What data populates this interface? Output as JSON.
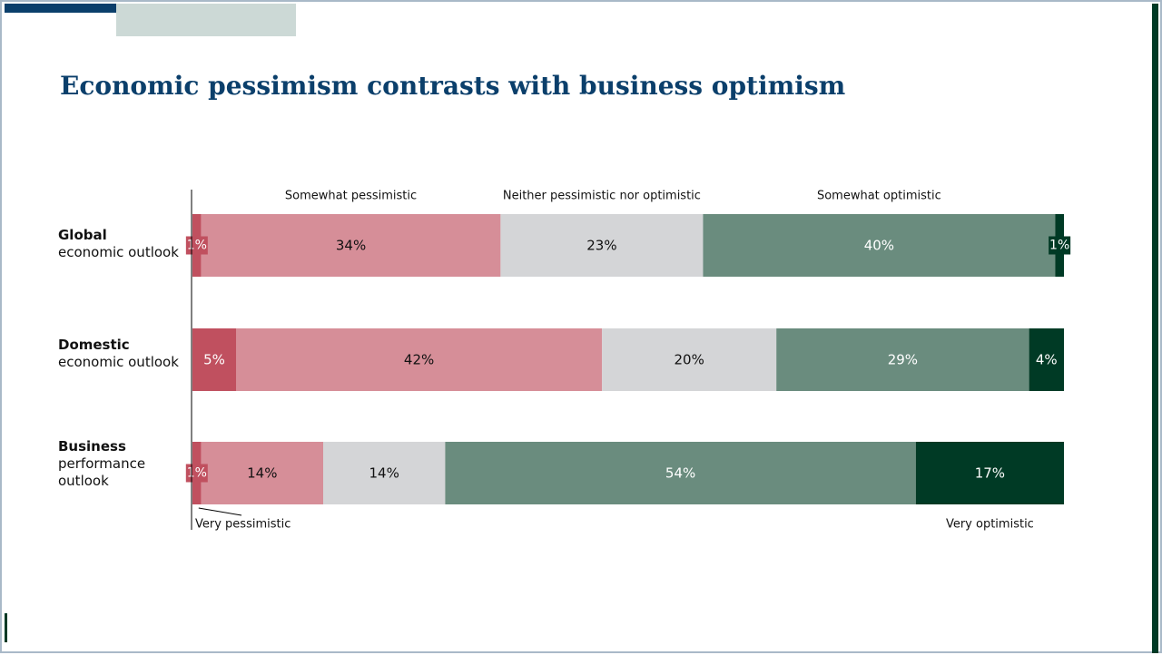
{
  "slide": {
    "title": "Economic pessimism contrasts with business optimism"
  },
  "chart_data": {
    "type": "bar",
    "orientation": "horizontal",
    "stacked": true,
    "unit": "%",
    "categories": [
      {
        "bold": "Global",
        "rest": [
          "economic outlook"
        ]
      },
      {
        "bold": "Domestic",
        "rest": [
          "economic outlook"
        ]
      },
      {
        "bold": "Business",
        "rest": [
          "performance",
          "outlook"
        ]
      }
    ],
    "series": [
      {
        "name": "Very pessimistic",
        "color": "#c0505f",
        "text_color": "#ffffff",
        "values": [
          1,
          5,
          1
        ]
      },
      {
        "name": "Somewhat pessimistic",
        "color": "#d68e98",
        "text_color": "#111111",
        "values": [
          34,
          42,
          14
        ]
      },
      {
        "name": "Neither pessimistic nor optimistic",
        "color": "#d4d5d7",
        "text_color": "#111111",
        "values": [
          23,
          20,
          14
        ]
      },
      {
        "name": "Somewhat optimistic",
        "color": "#6a8c7e",
        "text_color": "#ffffff",
        "values": [
          40,
          29,
          54
        ]
      },
      {
        "name": "Very optimistic",
        "color": "#003a25",
        "text_color": "#ffffff",
        "values": [
          1,
          4,
          17
        ]
      }
    ],
    "grid": false,
    "legend": "labels above and below bars"
  }
}
